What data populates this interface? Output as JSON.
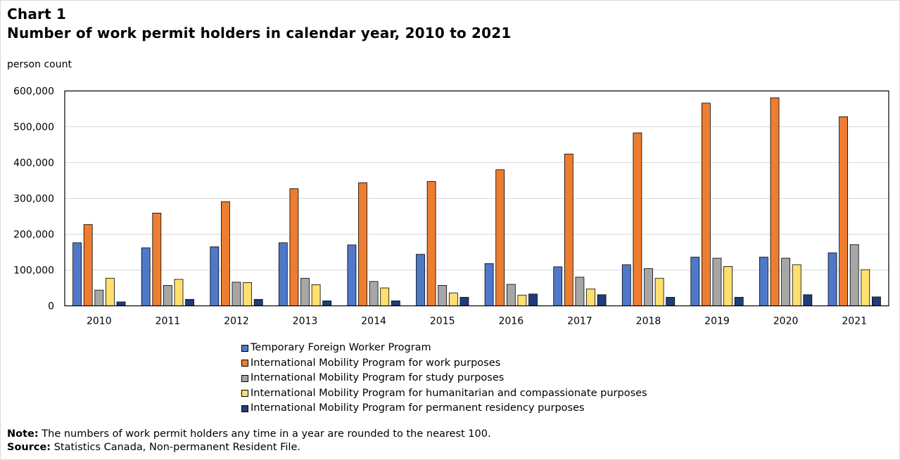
{
  "title_line1": "Chart 1",
  "title_line2": "Number of work permit holders in calendar year, 2010 to 2021",
  "chart_data": {
    "type": "bar",
    "title": "Number of work permit holders in calendar year, 2010 to 2021",
    "ylabel": "person count",
    "xlabel": "",
    "ylim": [
      0,
      600000
    ],
    "yticks": [
      0,
      100000,
      200000,
      300000,
      400000,
      500000,
      600000
    ],
    "ytick_labels": [
      "0",
      "100,000",
      "200,000",
      "300,000",
      "400,000",
      "500,000",
      "600,000"
    ],
    "grid": true,
    "categories": [
      "2010",
      "2011",
      "2012",
      "2013",
      "2014",
      "2015",
      "2016",
      "2017",
      "2018",
      "2019",
      "2020",
      "2021"
    ],
    "series": [
      {
        "name": "Temporary Foreign Worker Program",
        "color": "#4f78c9",
        "values": [
          176000,
          162000,
          165000,
          176000,
          170000,
          144000,
          118000,
          109000,
          115000,
          136000,
          136000,
          148000
        ]
      },
      {
        "name": "International Mobility Program for work purposes",
        "color": "#ed7d31",
        "values": [
          227000,
          259000,
          291000,
          327000,
          344000,
          347000,
          380000,
          424000,
          483000,
          566000,
          581000,
          528000
        ]
      },
      {
        "name": "International Mobility Program for study purposes",
        "color": "#a6a6a6",
        "values": [
          44000,
          57000,
          66000,
          77000,
          68000,
          57000,
          60000,
          80000,
          104000,
          133000,
          133000,
          171000
        ]
      },
      {
        "name": "International Mobility Program for humanitarian and compassionate purposes",
        "color": "#ffdf6e",
        "values": [
          77000,
          74000,
          65000,
          59000,
          50000,
          36000,
          30000,
          47000,
          77000,
          110000,
          115000,
          101000
        ]
      },
      {
        "name": "International Mobility Program for permanent residency purposes",
        "color": "#1f3d7a",
        "values": [
          11000,
          18000,
          18000,
          14000,
          14000,
          24000,
          33000,
          31000,
          24000,
          24000,
          31000,
          25000
        ]
      }
    ]
  },
  "notes": {
    "note_label": "Note:",
    "note_text": " The numbers of work permit holders any time in a year are rounded to the nearest 100.",
    "source_label": "Source:",
    "source_text": " Statistics Canada, Non-permanent Resident File."
  }
}
